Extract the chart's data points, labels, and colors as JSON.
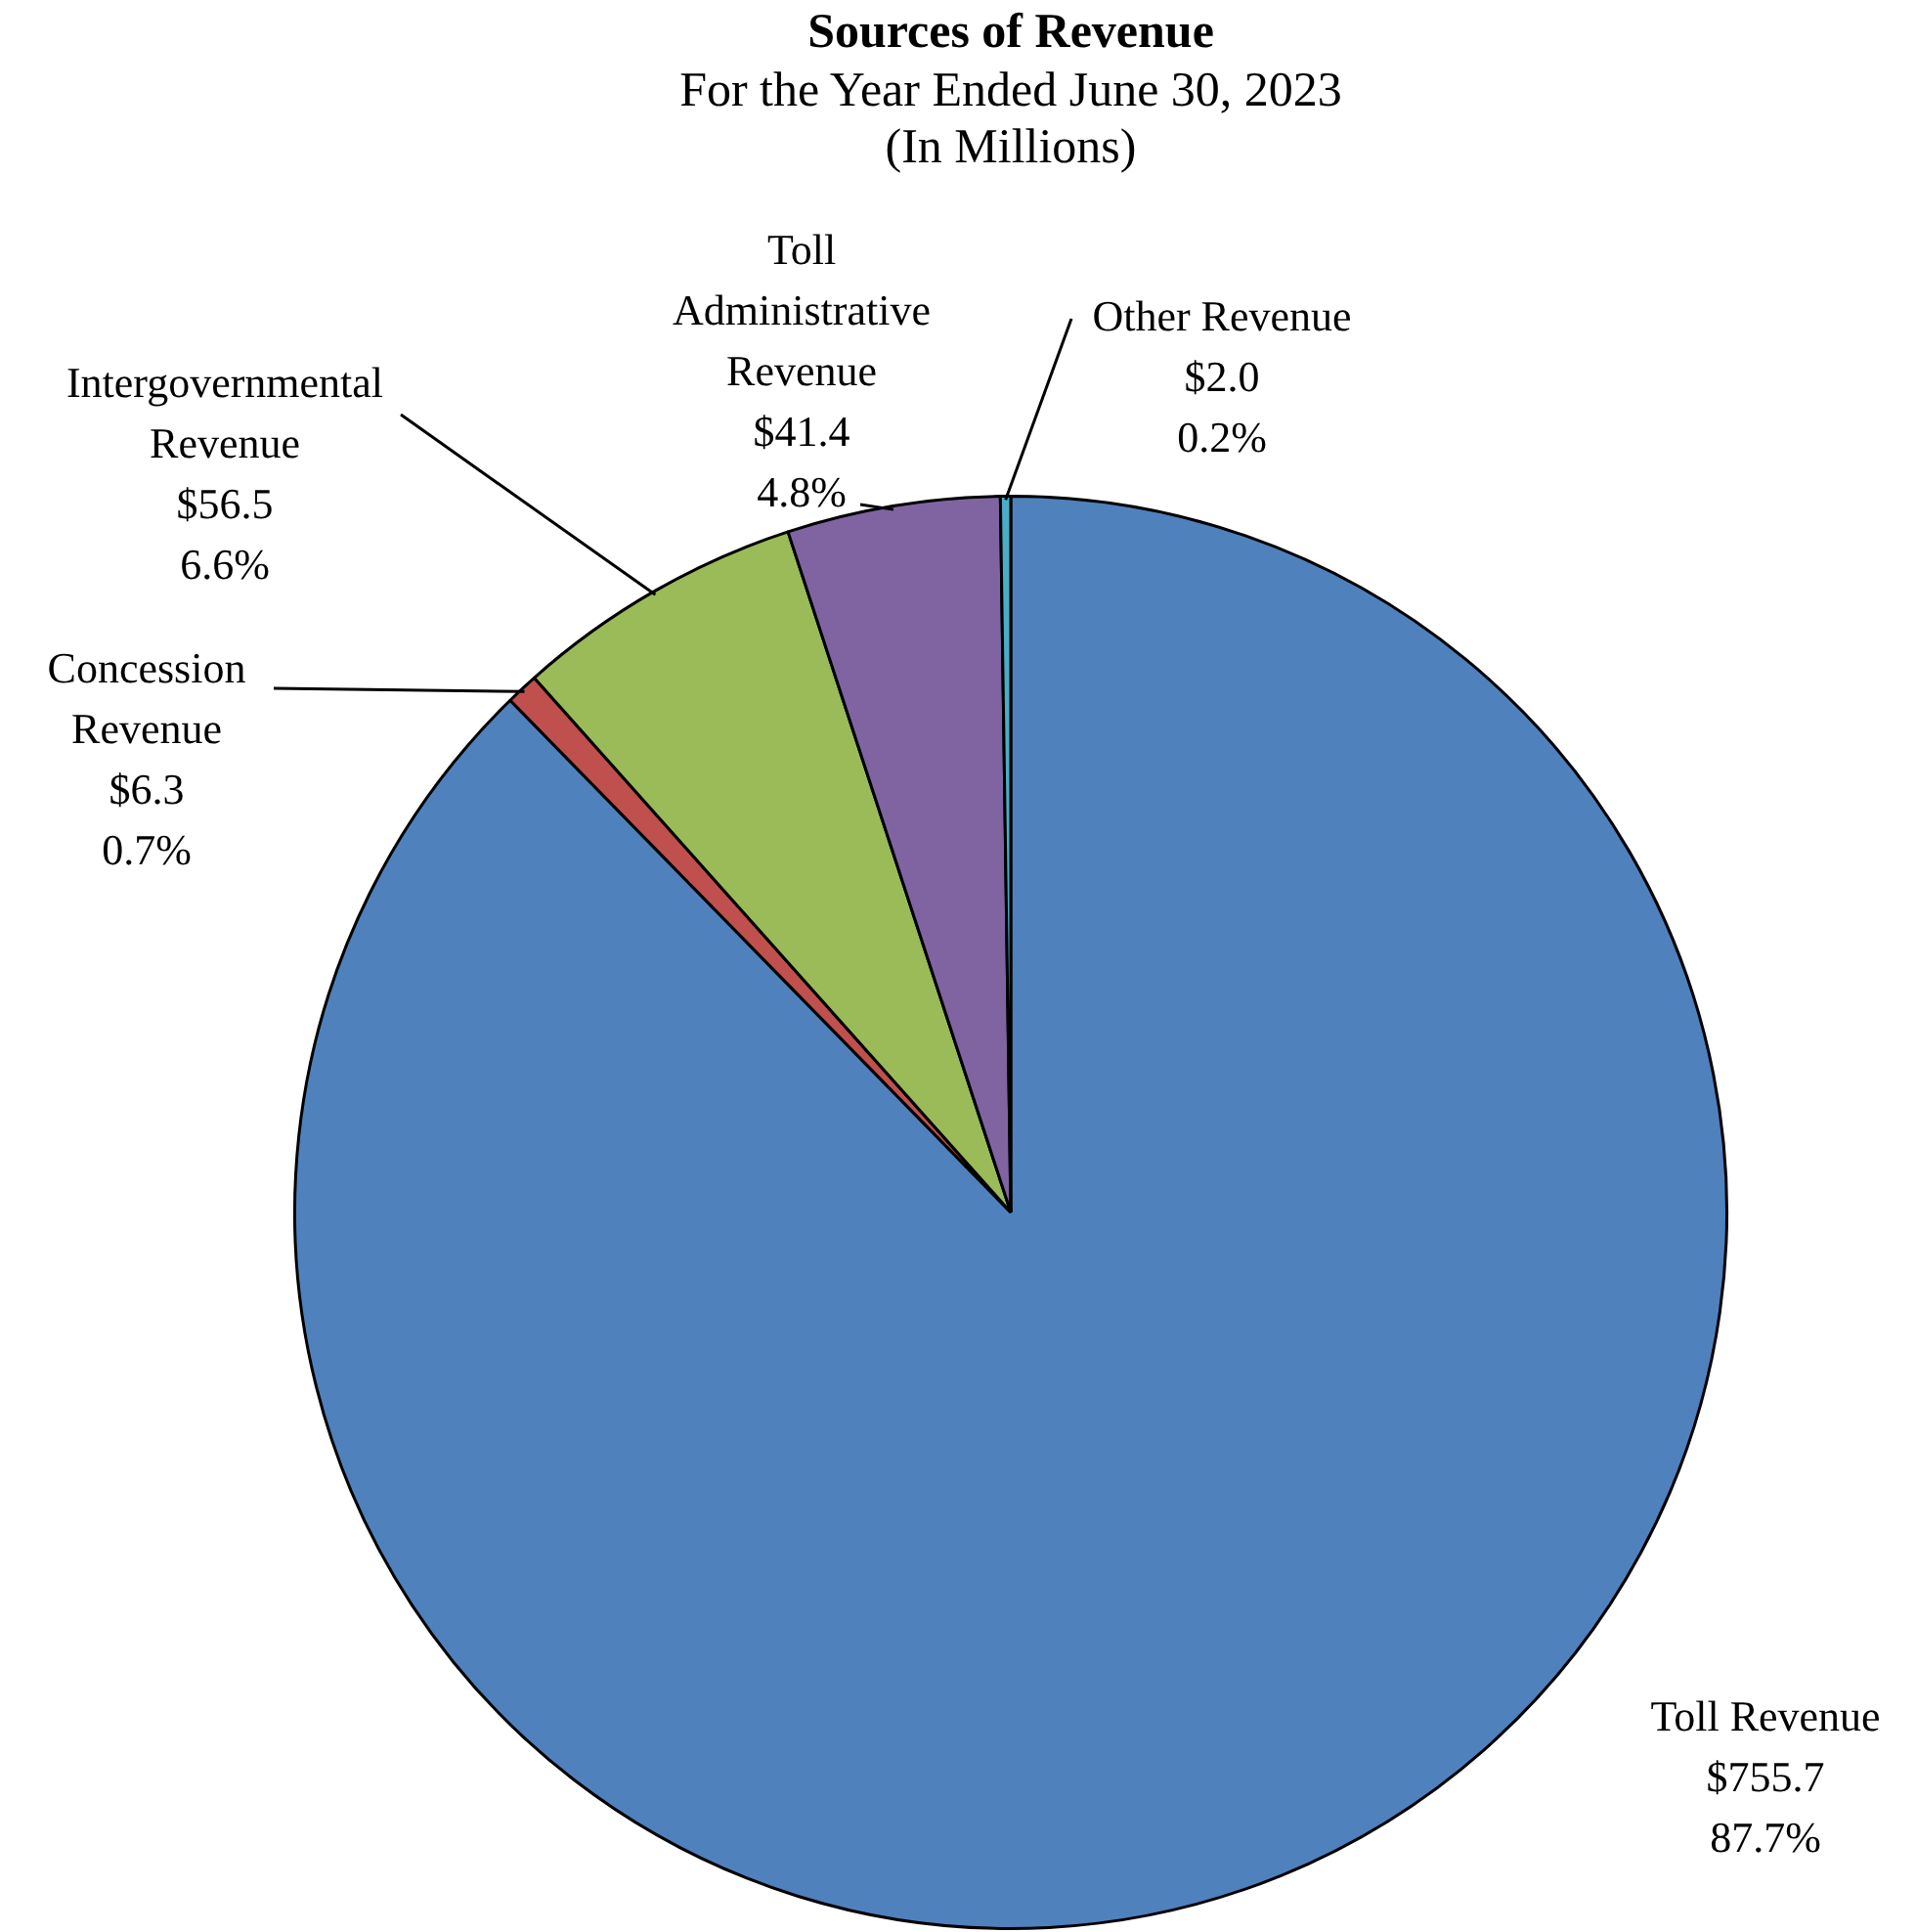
{
  "chart_data": {
    "type": "pie",
    "title": "Sources of Revenue",
    "subtitle": "For the Year Ended June 30, 2023\n(In Millions)",
    "categories": [
      "Toll Revenue",
      "Concession Revenue",
      "Intergovernmental Revenue",
      "Toll Administrative Revenue",
      "Other Revenue"
    ],
    "values": [
      755.7,
      6.3,
      56.5,
      41.4,
      2.0
    ],
    "colors": [
      "#4f81bd",
      "#c0504d",
      "#9bbb59",
      "#8064a2",
      "#4bacc6"
    ],
    "value_labels": [
      "$755.7\n87.7%",
      "$6.3\n0.7%",
      "$56.5\n6.6%",
      "$41.4\n4.8%",
      "$2.0\n0.2%"
    ],
    "legend": false
  }
}
